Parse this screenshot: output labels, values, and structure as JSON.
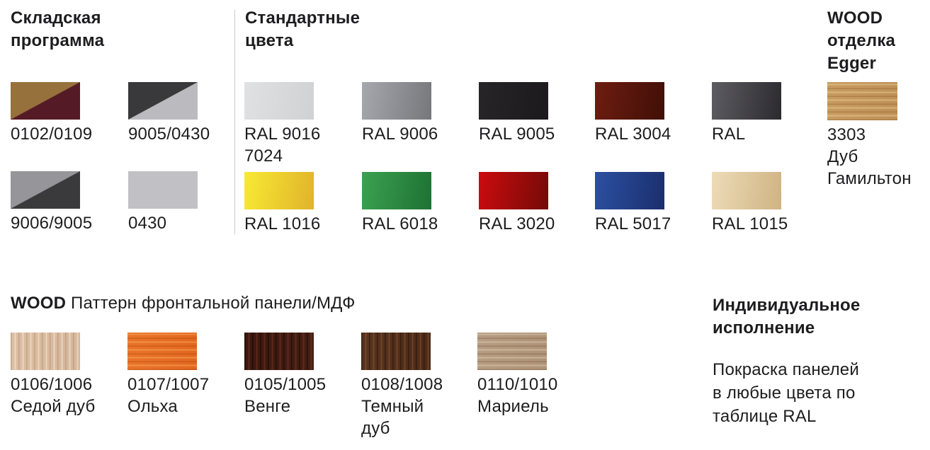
{
  "page": {
    "background": "#ffffff",
    "text_color": "#1d1d1f",
    "divider_color": "#c9c9c9"
  },
  "warehouse": {
    "title_lines": [
      "Складская",
      "программа"
    ],
    "items": [
      {
        "label_lines": [
          "0102/0109"
        ],
        "swatch": {
          "type": "diagonal",
          "top_left": "#97713C",
          "bottom_right": "#541B27"
        }
      },
      {
        "label_lines": [
          "9005/0430"
        ],
        "swatch": {
          "type": "diagonal",
          "top_left": "#39393B",
          "bottom_right": "#BBBBBF"
        }
      },
      {
        "label_lines": [
          "9006/9005"
        ],
        "swatch": {
          "type": "diagonal",
          "top_left": "#95959A",
          "bottom_right": "#3A3A3C"
        }
      },
      {
        "label_lines": [
          "0430"
        ],
        "swatch": {
          "type": "solid",
          "color": "#C1C1C5"
        }
      }
    ]
  },
  "standard": {
    "title_lines": [
      "Стандартные",
      "цвета"
    ],
    "row1": [
      {
        "label_lines": [
          "RAL 9016",
          "7024"
        ],
        "swatch": {
          "type": "gradient",
          "from": "#E0E1E3",
          "to": "#D0D1D3"
        }
      },
      {
        "label_lines": [
          "RAL 9006"
        ],
        "swatch": {
          "type": "gradient",
          "from": "#A6A8AD",
          "to": "#76777B"
        }
      },
      {
        "label_lines": [
          "RAL 9005"
        ],
        "swatch": {
          "type": "gradient",
          "from": "#272528",
          "to": "#1B191C"
        }
      },
      {
        "label_lines": [
          "RAL 3004"
        ],
        "swatch": {
          "type": "gradient",
          "from": "#6E1D10",
          "to": "#400F07"
        }
      },
      {
        "label_lines": [
          "RAL"
        ],
        "swatch": {
          "type": "gradient",
          "from": "#5E5D62",
          "to": "#2B2A2F"
        }
      }
    ],
    "row2": [
      {
        "label_lines": [
          "RAL 1016"
        ],
        "swatch": {
          "type": "gradient",
          "from": "#F8EA33",
          "to": "#E0B32B"
        }
      },
      {
        "label_lines": [
          "RAL 6018"
        ],
        "swatch": {
          "type": "gradient",
          "from": "#3BA251",
          "to": "#1E7133"
        }
      },
      {
        "label_lines": [
          "RAL 3020"
        ],
        "swatch": {
          "type": "gradient",
          "from": "#CC0B0E",
          "to": "#730B08"
        }
      },
      {
        "label_lines": [
          "RAL 5017"
        ],
        "swatch": {
          "type": "gradient",
          "from": "#2C50A1",
          "to": "#1A2E6D"
        }
      },
      {
        "label_lines": [
          "RAL 1015"
        ],
        "swatch": {
          "type": "gradient",
          "from": "#EDDCB8",
          "to": "#CFB382"
        }
      }
    ]
  },
  "wood_egger": {
    "title_lines": [
      "WOOD",
      "отделка",
      "Egger"
    ],
    "item": {
      "label_lines": [
        "3303",
        "Дуб",
        "Гамильтон"
      ],
      "swatch": {
        "type": "wood",
        "base": "#C89B60",
        "base2": "#BE9158",
        "grain_angle": 0,
        "streak_dark": "rgba(134,88,38,0.35)",
        "streak_light": "rgba(240,214,160,0.45)"
      }
    }
  },
  "wood_pattern": {
    "title_bold": "WOOD",
    "title_rest": " Паттерн фронтальной панели/МДФ",
    "items": [
      {
        "label_lines": [
          "0106/1006",
          "Седой дуб"
        ],
        "swatch": {
          "type": "wood",
          "base": "#DBBEA3",
          "base2": "#D5B79B",
          "grain_angle": 90,
          "streak_dark": "rgba(150,105,70,0.30)",
          "streak_light": "rgba(255,245,235,0.45)"
        }
      },
      {
        "label_lines": [
          "0107/1007",
          "Ольха"
        ],
        "swatch": {
          "type": "wood",
          "base": "#E97429",
          "base2": "#E2671F",
          "grain_angle": 0,
          "streak_dark": "rgba(150,55,10,0.30)",
          "streak_light": "rgba(255,190,120,0.40)"
        }
      },
      {
        "label_lines": [
          "0105/1005",
          "Венге"
        ],
        "swatch": {
          "type": "wood",
          "base": "#3A1710",
          "base2": "#451E13",
          "grain_angle": 90,
          "streak_dark": "rgba(0,0,0,0.45)",
          "streak_light": "rgba(150,70,40,0.35)"
        }
      },
      {
        "label_lines": [
          "0108/1008",
          "Темный",
          "дуб"
        ],
        "swatch": {
          "type": "wood",
          "base": "#573320",
          "base2": "#4C2A17",
          "grain_angle": 90,
          "streak_dark": "rgba(25,10,4,0.45)",
          "streak_light": "rgba(160,110,60,0.35)"
        }
      },
      {
        "label_lines": [
          "0110/1010",
          "Мариель"
        ],
        "swatch": {
          "type": "wood",
          "base": "#B69C80",
          "base2": "#AE9377",
          "grain_angle": 0,
          "streak_dark": "rgba(100,72,50,0.30)",
          "streak_light": "rgba(235,222,200,0.40)"
        }
      }
    ]
  },
  "custom": {
    "title_lines": [
      "Индивидуальное",
      "исполнение"
    ],
    "body_lines": [
      "Покраска панелей",
      "в любые цвета по",
      "таблице RAL"
    ]
  }
}
